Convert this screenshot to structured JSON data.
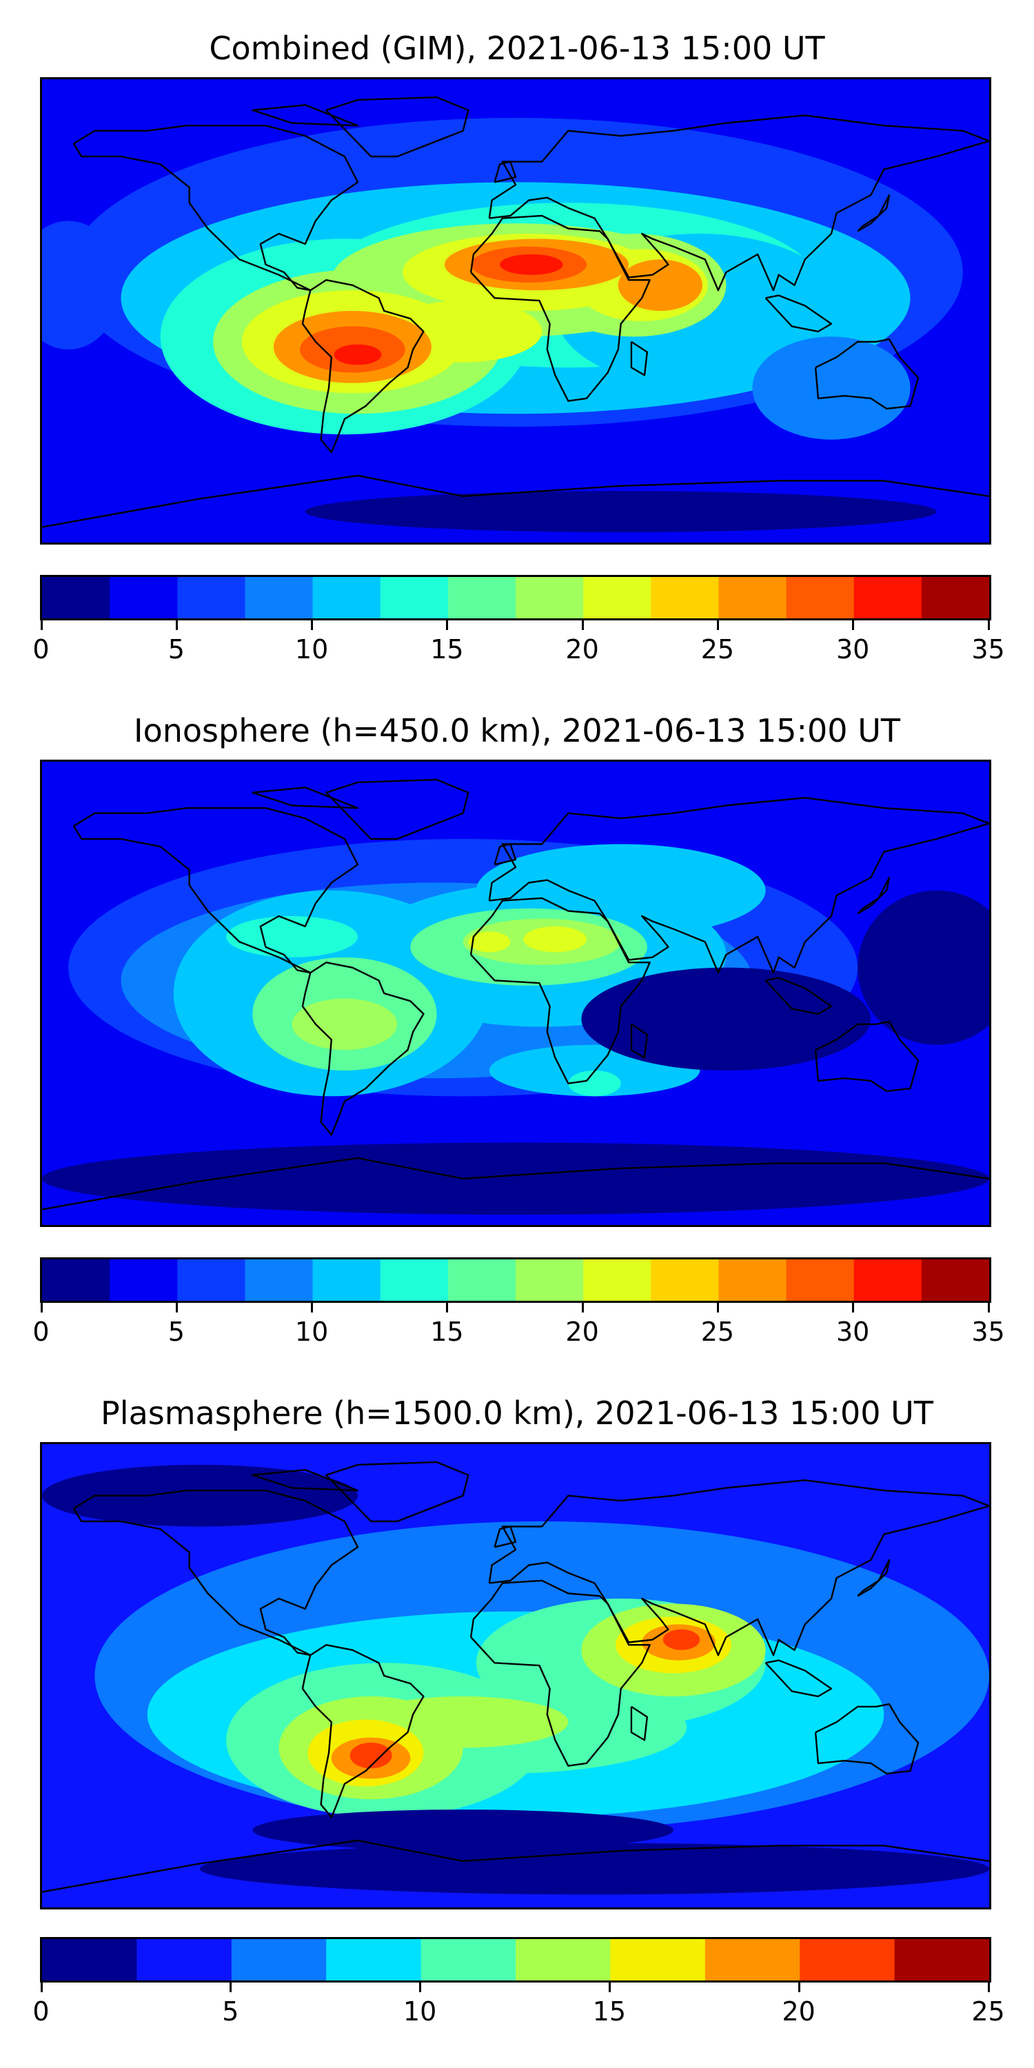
{
  "chart_data": [
    {
      "type": "heatmap",
      "title": "Combined (GIM), 2021-06-13 15:00 UT",
      "xlabel": "",
      "ylabel": "",
      "x_range_lon": [
        -180,
        180
      ],
      "y_range_lat": [
        -90,
        90
      ],
      "coastlines": true,
      "colorbar": {
        "orientation": "horizontal",
        "levels": [
          0,
          2.5,
          5,
          7.5,
          10,
          12.5,
          15,
          17.5,
          20,
          22.5,
          25,
          27.5,
          30,
          32.5,
          35
        ],
        "colors": [
          "#00008f",
          "#0000f5",
          "#0a3cff",
          "#0a80ff",
          "#00c8ff",
          "#1effd8",
          "#5cff9c",
          "#a0ff5c",
          "#dfff1c",
          "#ffd200",
          "#ff9400",
          "#ff5a00",
          "#ff1400",
          "#a40000"
        ],
        "tick_labels": [
          "0",
          "5",
          "10",
          "15",
          "20",
          "25",
          "30",
          "35"
        ]
      },
      "features": [
        {
          "name": "equatorial-anomaly-south-america",
          "lon": -60,
          "lat": -15,
          "peak": 31
        },
        {
          "name": "equatorial-anomaly-west-africa",
          "lon": 5,
          "lat": 18,
          "peak": 31
        },
        {
          "name": "east-africa-arabian-sea",
          "lon": 50,
          "lat": 10,
          "peak": 26
        },
        {
          "name": "south-atlantic",
          "lon": -10,
          "lat": -10,
          "peak": 24
        },
        {
          "name": "north-polar-minimum",
          "lon": -120,
          "lat": 75,
          "peak": 3
        },
        {
          "name": "south-polar-minimum",
          "lon": 60,
          "lat": -78,
          "peak": 2
        }
      ]
    },
    {
      "type": "heatmap",
      "title": "Ionosphere  (h=450.0 km), 2021-06-13 15:00 UT",
      "xlabel": "",
      "ylabel": "",
      "x_range_lon": [
        -180,
        180
      ],
      "y_range_lat": [
        -90,
        90
      ],
      "coastlines": true,
      "colorbar": {
        "orientation": "horizontal",
        "levels": [
          0,
          2.5,
          5,
          7.5,
          10,
          12.5,
          15,
          17.5,
          20,
          22.5,
          25,
          27.5,
          30,
          32.5,
          35
        ],
        "colors": [
          "#00008f",
          "#0000f5",
          "#0a3cff",
          "#0a80ff",
          "#00c8ff",
          "#1effd8",
          "#5cff9c",
          "#a0ff5c",
          "#dfff1c",
          "#ffd200",
          "#ff9400",
          "#ff5a00",
          "#ff1400",
          "#a40000"
        ],
        "tick_labels": [
          "0",
          "5",
          "10",
          "15",
          "20",
          "25",
          "30",
          "35"
        ]
      },
      "features": [
        {
          "name": "north-africa-maximum",
          "lon": 5,
          "lat": 20,
          "peak": 21
        },
        {
          "name": "south-america-maximum",
          "lon": -65,
          "lat": -10,
          "peak": 18
        },
        {
          "name": "caribbean-band",
          "lon": -75,
          "lat": 25,
          "peak": 15
        },
        {
          "name": "south-indian-ocean",
          "lon": 30,
          "lat": -35,
          "peak": 12
        },
        {
          "name": "southern-ocean-minimum",
          "lon": 0,
          "lat": -70,
          "peak": 2
        }
      ]
    },
    {
      "type": "heatmap",
      "title": "Plasmasphere (h=1500.0 km), 2021-06-13 15:00 UT",
      "xlabel": "",
      "ylabel": "",
      "x_range_lon": [
        -180,
        180
      ],
      "y_range_lat": [
        -90,
        90
      ],
      "coastlines": true,
      "colorbar": {
        "orientation": "horizontal",
        "levels": [
          0,
          2.5,
          5,
          7.5,
          10,
          12.5,
          15,
          17.5,
          20,
          22.5,
          25
        ],
        "colors": [
          "#00008f",
          "#0a14ff",
          "#0a78ff",
          "#00e1ff",
          "#4cffb0",
          "#a8ff4c",
          "#f5f000",
          "#ff9400",
          "#ff3c00",
          "#a40000"
        ],
        "tick_labels": [
          "0",
          "5",
          "10",
          "15",
          "20",
          "25"
        ]
      },
      "features": [
        {
          "name": "southern-south-america-maximum",
          "lon": -55,
          "lat": -30,
          "peak": 21
        },
        {
          "name": "arabian-sea-maximum",
          "lon": 65,
          "lat": 15,
          "peak": 21
        },
        {
          "name": "south-atlantic-band",
          "lon": -5,
          "lat": -25,
          "peak": 14
        },
        {
          "name": "north-pacific-low",
          "lon": -120,
          "lat": 70,
          "peak": 2
        },
        {
          "name": "antarctic-low",
          "lon": 30,
          "lat": -75,
          "peak": 1
        }
      ]
    }
  ]
}
